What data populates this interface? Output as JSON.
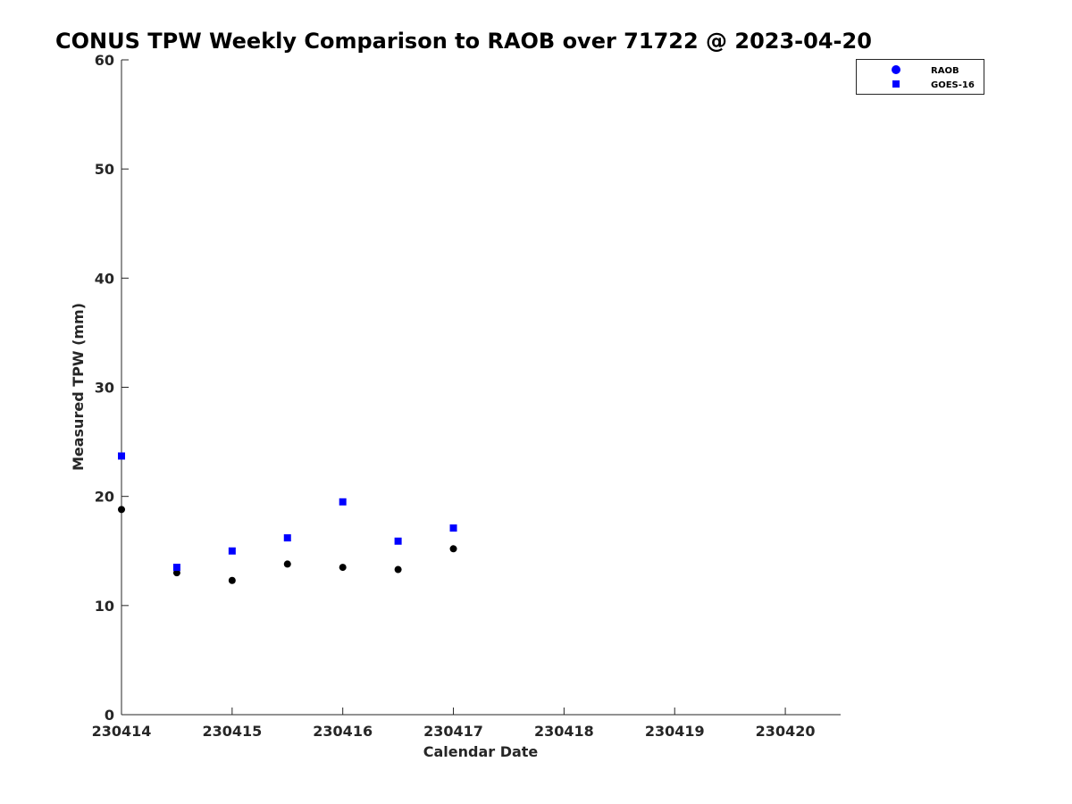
{
  "chart_data": {
    "type": "scatter",
    "title": "CONUS TPW Weekly Comparison to RAOB over 71722 @ 2023-04-20",
    "xlabel": "Calendar Date",
    "ylabel": "Measured TPW (mm)",
    "xlim": [
      "2023-04-14",
      "2023-04-20 12:00"
    ],
    "ylim": [
      0,
      60
    ],
    "x_ticks": [
      {
        "x": "2023-04-14",
        "label": "230414"
      },
      {
        "x": "2023-04-15",
        "label": "230415"
      },
      {
        "x": "2023-04-16",
        "label": "230416"
      },
      {
        "x": "2023-04-17",
        "label": "230417"
      },
      {
        "x": "2023-04-18",
        "label": "230418"
      },
      {
        "x": "2023-04-19",
        "label": "230419"
      },
      {
        "x": "2023-04-20",
        "label": "230420"
      }
    ],
    "y_ticks": [
      0,
      10,
      20,
      30,
      40,
      50,
      60
    ],
    "grid": false,
    "legend_position": "top-right",
    "legend": [
      {
        "label": "RAOB",
        "marker": "circle",
        "color": "#0000ff"
      },
      {
        "label": "GOES-16",
        "marker": "square",
        "color": "#0000ff"
      }
    ],
    "series": [
      {
        "name": "RAOB",
        "marker": "circle",
        "color": "#000000",
        "points": [
          {
            "x": "2023-04-14 00:00",
            "y": 18.8
          },
          {
            "x": "2023-04-14 12:00",
            "y": 13.0
          },
          {
            "x": "2023-04-15 00:00",
            "y": 12.3
          },
          {
            "x": "2023-04-15 12:00",
            "y": 13.8
          },
          {
            "x": "2023-04-16 00:00",
            "y": 13.5
          },
          {
            "x": "2023-04-16 12:00",
            "y": 13.3
          },
          {
            "x": "2023-04-17 00:00",
            "y": 15.2
          }
        ]
      },
      {
        "name": "GOES-16",
        "marker": "square",
        "color": "#0000ff",
        "points": [
          {
            "x": "2023-04-14 00:00",
            "y": 23.7
          },
          {
            "x": "2023-04-14 12:00",
            "y": 13.5
          },
          {
            "x": "2023-04-15 00:00",
            "y": 15.0
          },
          {
            "x": "2023-04-15 12:00",
            "y": 16.2
          },
          {
            "x": "2023-04-16 00:00",
            "y": 19.5
          },
          {
            "x": "2023-04-16 12:00",
            "y": 15.9
          },
          {
            "x": "2023-04-17 00:00",
            "y": 17.1
          }
        ]
      }
    ]
  }
}
